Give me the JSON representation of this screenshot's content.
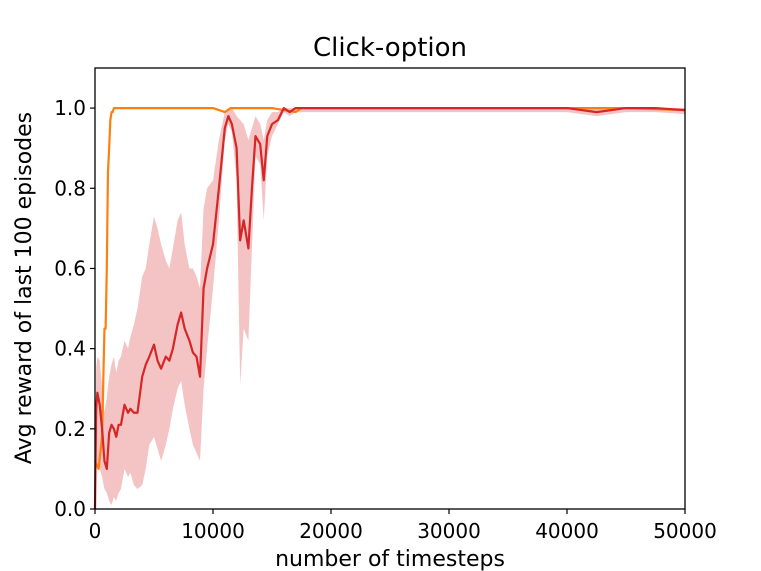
{
  "chart_data": {
    "type": "line",
    "title": "Click-option",
    "xlabel": "number of timesteps",
    "ylabel": "Avg reward of last 100 episodes",
    "xlim": [
      0,
      50000
    ],
    "ylim": [
      0,
      1.1
    ],
    "xticks": [
      0,
      10000,
      20000,
      30000,
      40000,
      50000
    ],
    "xtick_labels": [
      "0",
      "10000",
      "20000",
      "30000",
      "40000",
      "50000"
    ],
    "yticks": [
      0.0,
      0.2,
      0.4,
      0.6,
      0.8,
      1.0
    ],
    "ytick_labels": [
      "0.0",
      "0.2",
      "0.4",
      "0.6",
      "0.8",
      "1.0"
    ],
    "grid": false,
    "legend": "none",
    "series": [
      {
        "color": "#ff7f0e",
        "x": [
          0,
          300,
          600,
          800,
          900,
          1000,
          1100,
          1200,
          1300,
          1400,
          1500,
          1600,
          1700,
          1800,
          2000,
          2500,
          3000,
          5000,
          10000,
          11000,
          11500,
          12000,
          15000,
          17000,
          17500,
          18000,
          20000,
          25000,
          30000,
          35000,
          40000,
          45000,
          50000
        ],
        "y": [
          0.12,
          0.1,
          0.18,
          0.45,
          0.45,
          0.6,
          0.84,
          0.9,
          0.97,
          0.99,
          0.99,
          1.0,
          1.0,
          1.0,
          1.0,
          1.0,
          1.0,
          1.0,
          1.0,
          0.99,
          1.0,
          1.0,
          1.0,
          0.99,
          1.0,
          1.0,
          1.0,
          1.0,
          1.0,
          1.0,
          1.0,
          1.0,
          0.995
        ]
      },
      {
        "color": "#d62728",
        "band_color": "#f2b8b8",
        "x": [
          0,
          100,
          200,
          400,
          600,
          800,
          1000,
          1200,
          1400,
          1600,
          1800,
          2000,
          2200,
          2500,
          2800,
          3000,
          3300,
          3600,
          4000,
          4300,
          4600,
          5000,
          5300,
          5600,
          6000,
          6300,
          6600,
          7000,
          7300,
          7600,
          8000,
          8300,
          8600,
          8900,
          9200,
          9500,
          10000,
          10500,
          11000,
          11300,
          11600,
          12000,
          12300,
          12600,
          13000,
          13300,
          13600,
          14000,
          14300,
          14600,
          15000,
          15500,
          16000,
          16500,
          17000,
          18000,
          20000,
          25000,
          30000,
          35000,
          40000,
          42500,
          45000,
          47500,
          50000
        ],
        "y": [
          0.0,
          0.25,
          0.29,
          0.26,
          0.2,
          0.12,
          0.1,
          0.19,
          0.21,
          0.2,
          0.18,
          0.21,
          0.21,
          0.26,
          0.24,
          0.25,
          0.24,
          0.24,
          0.33,
          0.36,
          0.38,
          0.41,
          0.37,
          0.35,
          0.38,
          0.37,
          0.4,
          0.46,
          0.49,
          0.45,
          0.42,
          0.39,
          0.38,
          0.33,
          0.55,
          0.6,
          0.66,
          0.8,
          0.95,
          0.98,
          0.96,
          0.9,
          0.67,
          0.72,
          0.65,
          0.8,
          0.93,
          0.91,
          0.82,
          0.93,
          0.96,
          0.97,
          1.0,
          0.99,
          1.0,
          1.0,
          1.0,
          1.0,
          1.0,
          1.0,
          1.0,
          0.99,
          1.0,
          1.0,
          0.995
        ],
        "y_lower": [
          0.0,
          0.1,
          0.11,
          0.1,
          0.08,
          0.05,
          0.04,
          0.02,
          0.01,
          0.03,
          0.02,
          0.04,
          0.05,
          0.1,
          0.08,
          0.09,
          0.06,
          0.05,
          0.06,
          0.1,
          0.16,
          0.18,
          0.15,
          0.12,
          0.16,
          0.2,
          0.25,
          0.3,
          0.32,
          0.26,
          0.2,
          0.16,
          0.14,
          0.12,
          0.3,
          0.4,
          0.55,
          0.72,
          0.92,
          0.96,
          0.94,
          0.82,
          0.31,
          0.45,
          0.42,
          0.65,
          0.88,
          0.86,
          0.72,
          0.88,
          0.93,
          0.96,
          0.99,
          0.98,
          0.99,
          0.99,
          0.99,
          0.99,
          0.99,
          0.99,
          0.99,
          0.98,
          0.99,
          0.99,
          0.985
        ],
        "y_upper": [
          0.0,
          0.35,
          0.38,
          0.37,
          0.3,
          0.24,
          0.28,
          0.33,
          0.36,
          0.38,
          0.34,
          0.37,
          0.38,
          0.42,
          0.4,
          0.43,
          0.46,
          0.5,
          0.58,
          0.6,
          0.66,
          0.73,
          0.7,
          0.66,
          0.62,
          0.6,
          0.65,
          0.72,
          0.74,
          0.66,
          0.6,
          0.6,
          0.58,
          0.55,
          0.75,
          0.8,
          0.82,
          0.92,
          0.99,
          1.0,
          1.0,
          0.98,
          0.97,
          0.96,
          0.92,
          0.95,
          0.98,
          0.96,
          0.92,
          0.97,
          0.99,
          0.99,
          1.0,
          1.0,
          1.0,
          1.0,
          1.0,
          1.0,
          1.0,
          1.0,
          1.0,
          1.0,
          1.0,
          1.0,
          1.0
        ]
      }
    ]
  }
}
